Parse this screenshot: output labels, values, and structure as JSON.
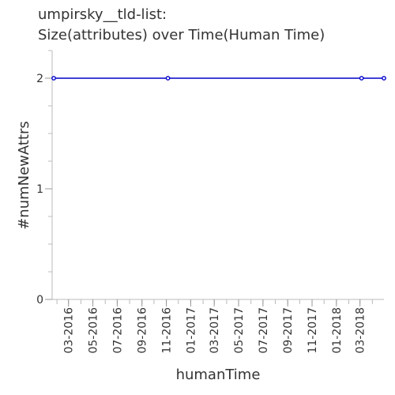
{
  "chart_data": {
    "type": "line",
    "title_lines": [
      "umpirsky__tld-list:",
      "Size(attributes) over Time(Human Time)"
    ],
    "xlabel": "humanTime",
    "ylabel": "#numNewAttrs",
    "x_tick_labels": [
      "03-2016",
      "05-2016",
      "07-2016",
      "09-2016",
      "11-2016",
      "01-2017",
      "03-2017",
      "05-2017",
      "07-2017",
      "09-2017",
      "11-2017",
      "01-2018",
      "03-2018"
    ],
    "x_range": [
      "2016-01-20",
      "2018-04-30"
    ],
    "ylim": [
      0,
      2.25
    ],
    "y_ticks": [
      0,
      1,
      2
    ],
    "y_minor_step": 0.25,
    "series": [
      {
        "color": "#0000cc",
        "points": [
          {
            "x": "2016-01-24",
            "y": 2
          },
          {
            "x": "2016-11-05",
            "y": 2
          },
          {
            "x": "2018-03-05",
            "y": 2
          },
          {
            "x": "2018-04-30",
            "y": 2
          }
        ]
      }
    ],
    "grid": false,
    "legend": "none"
  }
}
